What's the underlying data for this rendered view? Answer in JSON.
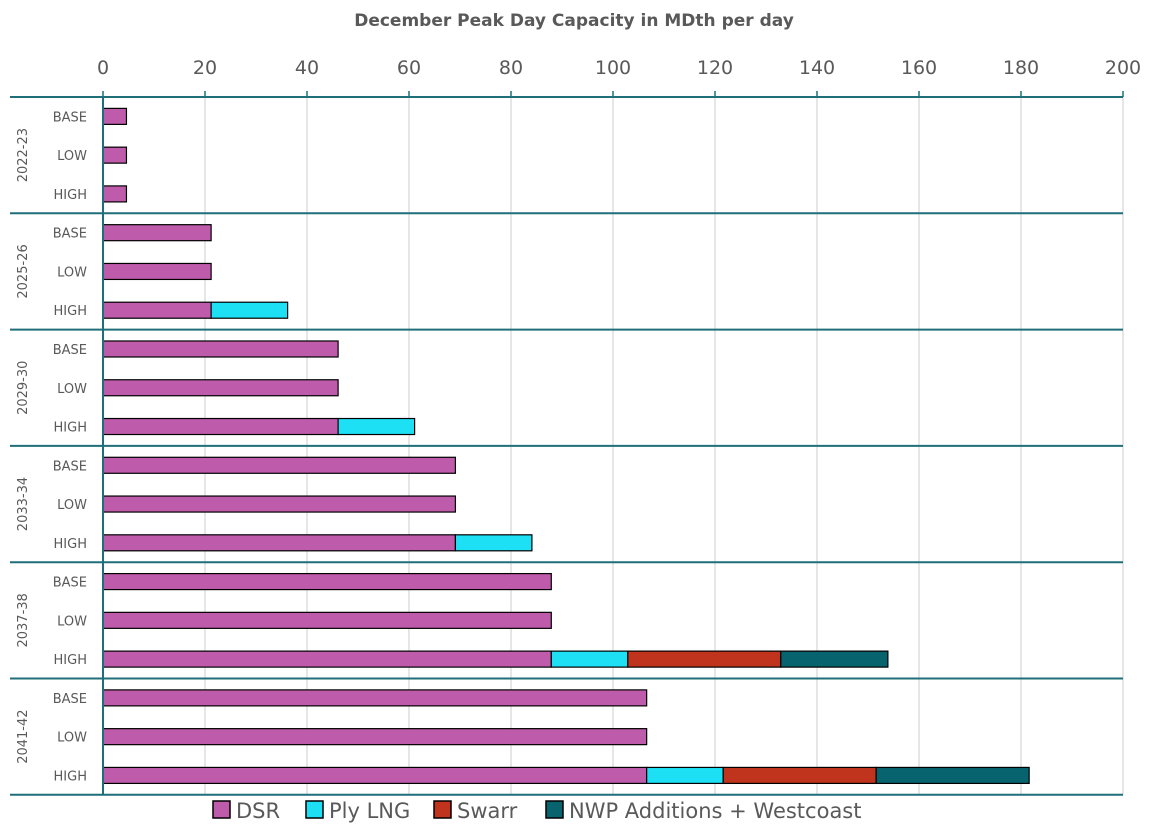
{
  "chart_data": {
    "type": "bar",
    "orientation": "horizontal",
    "stacked": true,
    "title": "December Peak Day Capacity in MDth per day",
    "xlim": [
      0,
      200
    ],
    "x_ticks": [
      "0",
      "20",
      "40",
      "60",
      "80",
      "100",
      "120",
      "140",
      "160",
      "180",
      "200"
    ],
    "x_axis_position": "top",
    "grid": true,
    "legend_position": "bottom",
    "groups": [
      {
        "label": "2022-23",
        "categories": [
          "BASE",
          "LOW",
          "HIGH"
        ]
      },
      {
        "label": "2025-26",
        "categories": [
          "BASE",
          "LOW",
          "HIGH"
        ]
      },
      {
        "label": "2029-30",
        "categories": [
          "BASE",
          "LOW",
          "HIGH"
        ]
      },
      {
        "label": "2033-34",
        "categories": [
          "BASE",
          "LOW",
          "HIGH"
        ]
      },
      {
        "label": "2037-38",
        "categories": [
          "BASE",
          "LOW",
          "HIGH"
        ]
      },
      {
        "label": "2041-42",
        "categories": [
          "BASE",
          "LOW",
          "HIGH"
        ]
      }
    ],
    "series": [
      {
        "name": "DSR",
        "color": "#BF5BAB",
        "values": [
          4.6,
          4.6,
          4.6,
          21.2,
          21.2,
          21.2,
          46.1,
          46.1,
          46.1,
          69.1,
          69.1,
          69.1,
          87.9,
          87.9,
          87.9,
          106.6,
          106.6,
          106.6
        ]
      },
      {
        "name": "Ply LNG",
        "color": "#1DE0F5",
        "values": [
          0,
          0,
          0,
          0,
          0,
          15.0,
          0,
          0,
          15.0,
          0,
          0,
          15.0,
          0,
          0,
          15.0,
          0,
          0,
          15.0
        ]
      },
      {
        "name": "Swarr",
        "color": "#C0341D",
        "values": [
          0,
          0,
          0,
          0,
          0,
          0,
          0,
          0,
          0,
          0,
          0,
          0,
          0,
          0,
          30.0,
          0,
          0,
          30.0
        ]
      },
      {
        "name": "NWP Additions + Westcoast",
        "color": "#07636E",
        "values": [
          0,
          0,
          0,
          0,
          0,
          0,
          0,
          0,
          0,
          0,
          0,
          0,
          0,
          0,
          21.0,
          0,
          0,
          30.0
        ]
      }
    ]
  }
}
